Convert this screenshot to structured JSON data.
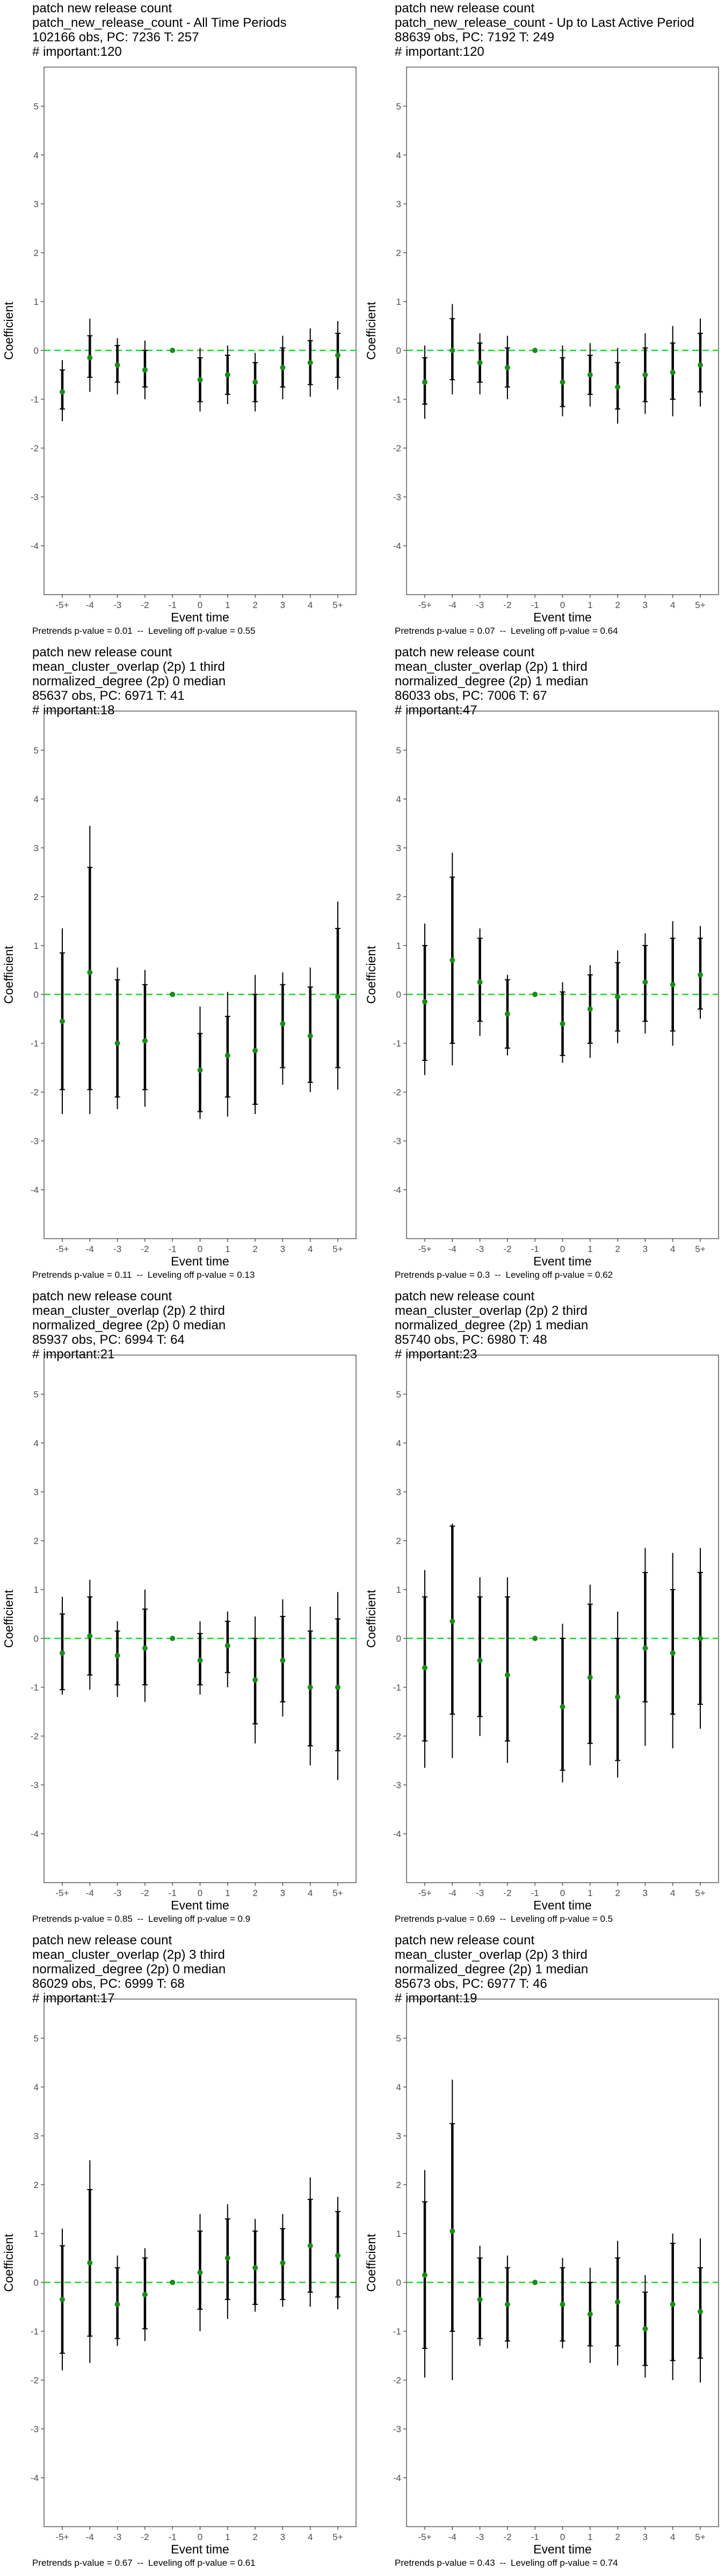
{
  "axes": {
    "xlabel": "Event time",
    "ylabel": "Coefficient",
    "x_categories": [
      "-5+",
      "-4",
      "-3",
      "-2",
      "-1",
      "0",
      "1",
      "2",
      "3",
      "4",
      "5+"
    ],
    "y_ticks": [
      "-4",
      "-3",
      "-2",
      "-1",
      "0",
      "1",
      "2",
      "3",
      "4",
      "5"
    ],
    "ylim": [
      -5,
      5.8
    ]
  },
  "footer_labels": {
    "pretrends": "Pretrends p-value =",
    "separator": "--",
    "leveling": "Leveling off p-value ="
  },
  "colors": {
    "point": "#1a8c1a",
    "zero_line": "#33cc33",
    "error_bar": "#000000",
    "panel_border": "#333333",
    "tick_text": "#4d4d4d"
  },
  "chart_data": [
    {
      "type": "scatter",
      "header": [
        "patch new release count",
        "patch_new_release_count - All Time Periods",
        "102166 obs, PC: 7236 T: 257",
        "# important:120"
      ],
      "pretrends_p": "0.01",
      "leveling_p": "0.55",
      "categories": [
        "-5+",
        "-4",
        "-3",
        "-2",
        "-1",
        "0",
        "1",
        "2",
        "3",
        "4",
        "5+"
      ],
      "estimate": [
        -0.85,
        -0.15,
        -0.3,
        -0.4,
        0,
        -0.6,
        -0.5,
        -0.65,
        -0.35,
        -0.25,
        -0.1
      ],
      "ci_inner_low": [
        -1.2,
        -0.55,
        -0.65,
        -0.75,
        0,
        -1.05,
        -0.9,
        -1.05,
        -0.75,
        -0.7,
        -0.55
      ],
      "ci_inner_high": [
        -0.4,
        0.3,
        0.1,
        0.0,
        0,
        -0.15,
        -0.1,
        -0.25,
        0.05,
        0.2,
        0.35
      ],
      "ci_outer_low": [
        -1.45,
        -0.85,
        -0.9,
        -1.0,
        0,
        -1.25,
        -1.1,
        -1.25,
        -1.0,
        -0.95,
        -0.8
      ],
      "ci_outer_high": [
        -0.2,
        0.65,
        0.25,
        0.2,
        0,
        0.05,
        0.1,
        -0.05,
        0.3,
        0.45,
        0.6
      ]
    },
    {
      "type": "scatter",
      "header": [
        "patch new release count",
        "patch_new_release_count - Up to Last Active Period",
        "88639 obs, PC: 7192 T: 249",
        "# important:120"
      ],
      "pretrends_p": "0.07",
      "leveling_p": "0.64",
      "categories": [
        "-5+",
        "-4",
        "-3",
        "-2",
        "-1",
        "0",
        "1",
        "2",
        "3",
        "4",
        "5+"
      ],
      "estimate": [
        -0.65,
        0.0,
        -0.25,
        -0.35,
        0,
        -0.65,
        -0.5,
        -0.75,
        -0.5,
        -0.45,
        -0.3
      ],
      "ci_inner_low": [
        -1.1,
        -0.6,
        -0.65,
        -0.75,
        0,
        -1.15,
        -0.9,
        -1.2,
        -1.05,
        -1.0,
        -0.85
      ],
      "ci_inner_high": [
        -0.15,
        0.65,
        0.15,
        0.05,
        0,
        -0.15,
        -0.1,
        -0.25,
        0.05,
        0.15,
        0.35
      ],
      "ci_outer_low": [
        -1.4,
        -0.9,
        -0.9,
        -1.0,
        0,
        -1.35,
        -1.15,
        -1.5,
        -1.3,
        -1.35,
        -1.15
      ],
      "ci_outer_high": [
        0.1,
        0.95,
        0.35,
        0.3,
        0,
        0.1,
        0.15,
        0.05,
        0.35,
        0.5,
        0.65
      ]
    },
    {
      "type": "scatter",
      "header": [
        "patch new release count",
        "mean_cluster_overlap (2p) 1 third",
        "normalized_degree (2p) 0 median",
        "85637 obs, PC: 6971 T: 41",
        "# important:18"
      ],
      "pretrends_p": "0.11",
      "leveling_p": "0.13",
      "categories": [
        "-5+",
        "-4",
        "-3",
        "-2",
        "-1",
        "0",
        "1",
        "2",
        "3",
        "4",
        "5+"
      ],
      "estimate": [
        -0.55,
        0.45,
        -1.0,
        -0.95,
        0,
        -1.55,
        -1.25,
        -1.15,
        -0.6,
        -0.85,
        -0.05
      ],
      "ci_inner_low": [
        -1.95,
        -1.95,
        -2.1,
        -1.95,
        0,
        -2.4,
        -2.1,
        -2.25,
        -1.5,
        -1.8,
        -1.5
      ],
      "ci_inner_high": [
        0.85,
        2.6,
        0.3,
        0.2,
        0,
        -0.8,
        -0.45,
        0.0,
        0.2,
        0.15,
        1.35
      ],
      "ci_outer_low": [
        -2.45,
        -2.45,
        -2.35,
        -2.3,
        0,
        -2.55,
        -2.5,
        -2.45,
        -1.85,
        -2.0,
        -1.95
      ],
      "ci_outer_high": [
        1.35,
        3.45,
        0.55,
        0.5,
        0,
        -0.25,
        0.05,
        0.4,
        0.45,
        0.55,
        1.9
      ]
    },
    {
      "type": "scatter",
      "header": [
        "patch new release count",
        "mean_cluster_overlap (2p) 1 third",
        "normalized_degree (2p) 1 median",
        "86033 obs, PC: 7006 T: 67",
        "# important:47"
      ],
      "pretrends_p": "0.3",
      "leveling_p": "0.62",
      "categories": [
        "-5+",
        "-4",
        "-3",
        "-2",
        "-1",
        "0",
        "1",
        "2",
        "3",
        "4",
        "5+"
      ],
      "estimate": [
        -0.15,
        0.7,
        0.25,
        -0.4,
        0,
        -0.6,
        -0.3,
        -0.05,
        0.25,
        0.2,
        0.4
      ],
      "ci_inner_low": [
        -1.35,
        -1.0,
        -0.55,
        -1.1,
        0,
        -1.25,
        -1.0,
        -0.75,
        -0.55,
        -0.75,
        -0.3
      ],
      "ci_inner_high": [
        1.0,
        2.4,
        1.15,
        0.3,
        0,
        0.05,
        0.4,
        0.65,
        1.0,
        1.15,
        1.15
      ],
      "ci_outer_low": [
        -1.65,
        -1.45,
        -0.85,
        -1.25,
        0,
        -1.4,
        -1.3,
        -1.0,
        -0.8,
        -1.05,
        -0.5
      ],
      "ci_outer_high": [
        1.45,
        2.9,
        1.35,
        0.4,
        0,
        0.25,
        0.6,
        0.9,
        1.25,
        1.5,
        1.4
      ]
    },
    {
      "type": "scatter",
      "header": [
        "patch new release count",
        "mean_cluster_overlap (2p) 2 third",
        "normalized_degree (2p) 0 median",
        "85937 obs, PC: 6994 T: 64",
        "# important:21"
      ],
      "pretrends_p": "0.85",
      "leveling_p": "0.9",
      "categories": [
        "-5+",
        "-4",
        "-3",
        "-2",
        "-1",
        "0",
        "1",
        "2",
        "3",
        "4",
        "5+"
      ],
      "estimate": [
        -0.3,
        0.05,
        -0.35,
        -0.2,
        0,
        -0.45,
        -0.15,
        -0.85,
        -0.45,
        -1.0,
        -1.0
      ],
      "ci_inner_low": [
        -1.05,
        -0.75,
        -0.95,
        -0.95,
        0,
        -0.95,
        -0.7,
        -1.75,
        -1.3,
        -2.2,
        -2.3
      ],
      "ci_inner_high": [
        0.5,
        0.85,
        0.15,
        0.6,
        0,
        0.1,
        0.35,
        0.0,
        0.45,
        0.15,
        0.4
      ],
      "ci_outer_low": [
        -1.15,
        -1.05,
        -1.2,
        -1.3,
        0,
        -1.15,
        -1.0,
        -2.15,
        -1.6,
        -2.6,
        -2.9
      ],
      "ci_outer_high": [
        0.85,
        1.2,
        0.35,
        1.0,
        0,
        0.35,
        0.55,
        0.45,
        0.8,
        0.65,
        0.95
      ]
    },
    {
      "type": "scatter",
      "header": [
        "patch new release count",
        "mean_cluster_overlap (2p) 2 third",
        "normalized_degree (2p) 1 median",
        "85740 obs, PC: 6980 T: 48",
        "# important:23"
      ],
      "pretrends_p": "0.69",
      "leveling_p": "0.5",
      "categories": [
        "-5+",
        "-4",
        "-3",
        "-2",
        "-1",
        "0",
        "1",
        "2",
        "3",
        "4",
        "5+"
      ],
      "estimate": [
        -0.6,
        0.35,
        -0.45,
        -0.75,
        0,
        -1.4,
        -0.8,
        -1.2,
        -0.2,
        -0.3,
        0.0
      ],
      "ci_inner_low": [
        -2.1,
        -1.55,
        -1.6,
        -2.1,
        0,
        -2.7,
        -2.15,
        -2.5,
        -1.3,
        -1.55,
        -1.35
      ],
      "ci_inner_high": [
        0.85,
        2.3,
        0.85,
        0.85,
        0,
        0.0,
        0.7,
        0.0,
        1.35,
        1.0,
        1.35
      ],
      "ci_outer_low": [
        -2.65,
        -2.45,
        -2.0,
        -2.55,
        0,
        -2.95,
        -2.6,
        -2.85,
        -2.2,
        -2.25,
        -1.85
      ],
      "ci_outer_high": [
        1.4,
        2.35,
        1.25,
        1.25,
        0,
        0.3,
        1.1,
        0.55,
        1.85,
        1.75,
        1.85
      ]
    },
    {
      "type": "scatter",
      "header": [
        "patch new release count",
        "mean_cluster_overlap (2p) 3 third",
        "normalized_degree (2p) 0 median",
        "86029 obs, PC: 6999 T: 68",
        "# important:17"
      ],
      "pretrends_p": "0.67",
      "leveling_p": "0.61",
      "categories": [
        "-5+",
        "-4",
        "-3",
        "-2",
        "-1",
        "0",
        "1",
        "2",
        "3",
        "4",
        "5+"
      ],
      "estimate": [
        -0.35,
        0.4,
        -0.45,
        -0.25,
        0,
        0.2,
        0.5,
        0.3,
        0.4,
        0.75,
        0.55
      ],
      "ci_inner_low": [
        -1.45,
        -1.1,
        -1.15,
        -0.95,
        0,
        -0.55,
        -0.35,
        -0.45,
        -0.35,
        -0.2,
        -0.3
      ],
      "ci_inner_high": [
        0.75,
        1.9,
        0.3,
        0.5,
        0,
        1.05,
        1.3,
        1.05,
        1.1,
        1.7,
        1.45
      ],
      "ci_outer_low": [
        -1.8,
        -1.65,
        -1.3,
        -1.2,
        0,
        -1.0,
        -0.75,
        -0.6,
        -0.5,
        -0.5,
        -0.55
      ],
      "ci_outer_high": [
        1.1,
        2.5,
        0.55,
        0.7,
        0,
        1.4,
        1.6,
        1.3,
        1.4,
        2.15,
        1.75
      ]
    },
    {
      "type": "scatter",
      "header": [
        "patch new release count",
        "mean_cluster_overlap (2p) 3 third",
        "normalized_degree (2p) 1 median",
        "85673 obs, PC: 6977 T: 46",
        "# important:19"
      ],
      "pretrends_p": "0.43",
      "leveling_p": "0.74",
      "categories": [
        "-5+",
        "-4",
        "-3",
        "-2",
        "-1",
        "0",
        "1",
        "2",
        "3",
        "4",
        "5+"
      ],
      "estimate": [
        0.15,
        1.05,
        -0.35,
        -0.45,
        0,
        -0.45,
        -0.65,
        -0.4,
        -0.95,
        -0.45,
        -0.6
      ],
      "ci_inner_low": [
        -1.35,
        -1.0,
        -1.15,
        -1.2,
        0,
        -1.2,
        -1.3,
        -1.3,
        -1.7,
        -1.6,
        -1.55
      ],
      "ci_inner_high": [
        1.65,
        3.25,
        0.5,
        0.3,
        0,
        0.3,
        0.0,
        0.5,
        -0.2,
        0.8,
        0.3
      ],
      "ci_outer_low": [
        -1.95,
        -2.0,
        -1.3,
        -1.35,
        0,
        -1.35,
        -1.65,
        -1.7,
        -1.95,
        -2.0,
        -2.05
      ],
      "ci_outer_high": [
        2.3,
        4.15,
        0.75,
        0.55,
        0,
        0.5,
        0.3,
        0.85,
        0.15,
        1.0,
        0.9
      ]
    }
  ]
}
